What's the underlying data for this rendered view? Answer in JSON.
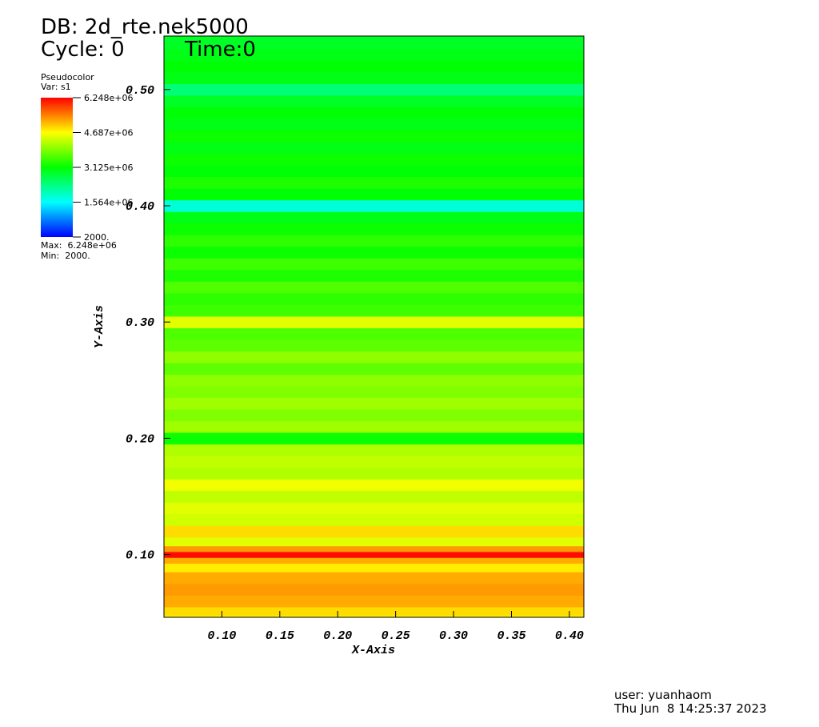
{
  "chart_data": {
    "type": "pseudocolor",
    "db_label": "DB: 2d_rte.nek5000",
    "cycle_label": "Cycle: 0",
    "time_label": "Time:0",
    "legend_title": "Pseudocolor",
    "variable_label": "Var: s1",
    "max_label": "Max:  6.248e+06",
    "min_label": "Min:  2000.",
    "x_label": "X-Axis",
    "y_label": "Y-Axis",
    "user_label": "user: yuanhaom",
    "date_label": "Thu Jun  8 14:25:37 2023",
    "xlim": [
      0.05,
      0.4125
    ],
    "ylim": [
      0.046,
      0.546
    ],
    "xticks": [
      {
        "value": 0.1,
        "label": "0.10"
      },
      {
        "value": 0.15,
        "label": "0.15"
      },
      {
        "value": 0.2,
        "label": "0.20"
      },
      {
        "value": 0.25,
        "label": "0.25"
      },
      {
        "value": 0.3,
        "label": "0.30"
      },
      {
        "value": 0.35,
        "label": "0.35"
      },
      {
        "value": 0.4,
        "label": "0.40"
      }
    ],
    "yticks": [
      {
        "value": 0.1,
        "label": "0.10"
      },
      {
        "value": 0.2,
        "label": "0.20"
      },
      {
        "value": 0.3,
        "label": "0.30"
      },
      {
        "value": 0.4,
        "label": "0.40"
      },
      {
        "value": 0.5,
        "label": "0.50"
      }
    ],
    "colorbar_lim": [
      2000,
      6248000
    ],
    "colorbar_ticks": [
      {
        "value": 6248000,
        "label": "6.248e+06"
      },
      {
        "value": 4687000,
        "label": "4.687e+06"
      },
      {
        "value": 3125000,
        "label": "3.125e+06"
      },
      {
        "value": 1564000,
        "label": "1.564e+06"
      },
      {
        "value": 2000,
        "label": "2000."
      }
    ],
    "y": [
      0.046,
      0.05,
      0.06,
      0.07,
      0.08,
      0.09,
      0.095,
      0.1,
      0.105,
      0.11,
      0.12,
      0.13,
      0.14,
      0.15,
      0.16,
      0.17,
      0.18,
      0.19,
      0.2,
      0.21,
      0.22,
      0.23,
      0.24,
      0.25,
      0.26,
      0.27,
      0.28,
      0.29,
      0.3,
      0.31,
      0.32,
      0.33,
      0.34,
      0.35,
      0.36,
      0.37,
      0.38,
      0.39,
      0.4,
      0.41,
      0.42,
      0.43,
      0.44,
      0.45,
      0.46,
      0.47,
      0.48,
      0.49,
      0.5,
      0.51,
      0.52,
      0.53,
      0.54,
      0.546
    ],
    "values": [
      4800000,
      4900000,
      5200000,
      5300000,
      5200000,
      4800000,
      5200000,
      6200000,
      5300000,
      4500000,
      4900000,
      4400000,
      4500000,
      4300000,
      4600000,
      4200000,
      4300000,
      4200000,
      3200000,
      4100000,
      3900000,
      4100000,
      3900000,
      4000000,
      3700000,
      4000000,
      3700000,
      3600000,
      4500000,
      3500000,
      3400000,
      3600000,
      3300000,
      3500000,
      3200000,
      3400000,
      3200000,
      3000000,
      1800000,
      3100000,
      3300000,
      3100000,
      3200000,
      3000000,
      3200000,
      3000000,
      3100000,
      2900000,
      2400000,
      3000000,
      3100000,
      3000000,
      2900000,
      2900000
    ]
  }
}
